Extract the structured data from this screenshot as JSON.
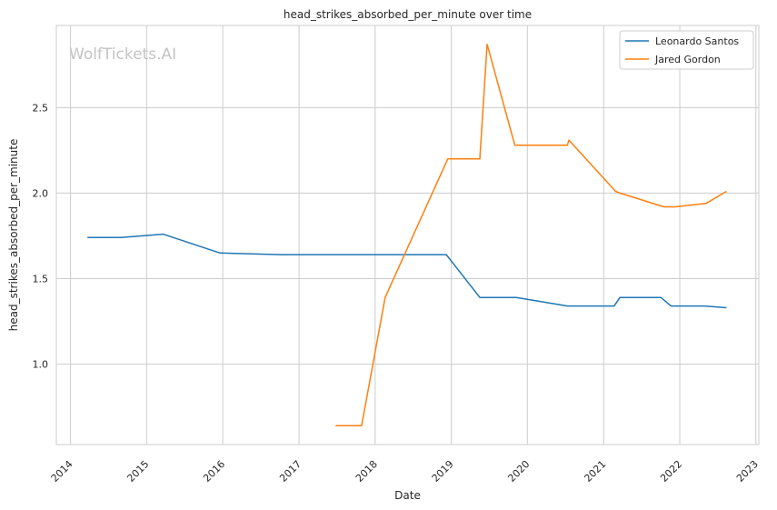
{
  "chart_data": {
    "type": "line",
    "title": "head_strikes_absorbed_per_minute over time",
    "xlabel": "Date",
    "ylabel": "head_strikes_absorbed_per_minute",
    "watermark": "WolfTickets.AI",
    "xlim": [
      "2013-10-25",
      "2023-01-15"
    ],
    "ylim": [
      0.53,
      2.98
    ],
    "x_ticks": [
      "2014",
      "2015",
      "2016",
      "2017",
      "2018",
      "2019",
      "2020",
      "2021",
      "2022",
      "2023"
    ],
    "y_ticks": [
      1.0,
      1.5,
      2.0,
      2.5
    ],
    "y_tick_labels": [
      "1.0",
      "1.5",
      "2.0",
      "2.5"
    ],
    "grid": true,
    "legend_position": "top-right",
    "series": [
      {
        "name": "Leonardo Santos",
        "color": "#1f77b4",
        "points": [
          {
            "x": "2014-03-23",
            "y": 1.74
          },
          {
            "x": "2014-08-30",
            "y": 1.74
          },
          {
            "x": "2015-03-21",
            "y": 1.76
          },
          {
            "x": "2015-12-19",
            "y": 1.65
          },
          {
            "x": "2016-10-08",
            "y": 1.64
          },
          {
            "x": "2018-12-08",
            "y": 1.64
          },
          {
            "x": "2019-05-18",
            "y": 1.39
          },
          {
            "x": "2019-11-09",
            "y": 1.39
          },
          {
            "x": "2020-07-11",
            "y": 1.34
          },
          {
            "x": "2021-02-20",
            "y": 1.34
          },
          {
            "x": "2021-03-20",
            "y": 1.39
          },
          {
            "x": "2021-10-02",
            "y": 1.39
          },
          {
            "x": "2021-11-20",
            "y": 1.34
          },
          {
            "x": "2022-04-30",
            "y": 1.34
          },
          {
            "x": "2022-08-13",
            "y": 1.33
          }
        ]
      },
      {
        "name": "Jared Gordon",
        "color": "#ff7f0e",
        "points": [
          {
            "x": "2017-06-25",
            "y": 0.64
          },
          {
            "x": "2017-10-28",
            "y": 0.64
          },
          {
            "x": "2018-02-18",
            "y": 1.39
          },
          {
            "x": "2018-12-15",
            "y": 2.2
          },
          {
            "x": "2019-05-18",
            "y": 2.2
          },
          {
            "x": "2019-06-22",
            "y": 2.87
          },
          {
            "x": "2019-11-02",
            "y": 2.28
          },
          {
            "x": "2020-07-11",
            "y": 2.28
          },
          {
            "x": "2020-07-18",
            "y": 2.31
          },
          {
            "x": "2021-02-27",
            "y": 2.01
          },
          {
            "x": "2021-03-20",
            "y": 2.0
          },
          {
            "x": "2021-10-16",
            "y": 1.92
          },
          {
            "x": "2021-12-11",
            "y": 1.92
          },
          {
            "x": "2022-05-07",
            "y": 1.94
          },
          {
            "x": "2022-08-13",
            "y": 2.01
          }
        ]
      }
    ]
  }
}
